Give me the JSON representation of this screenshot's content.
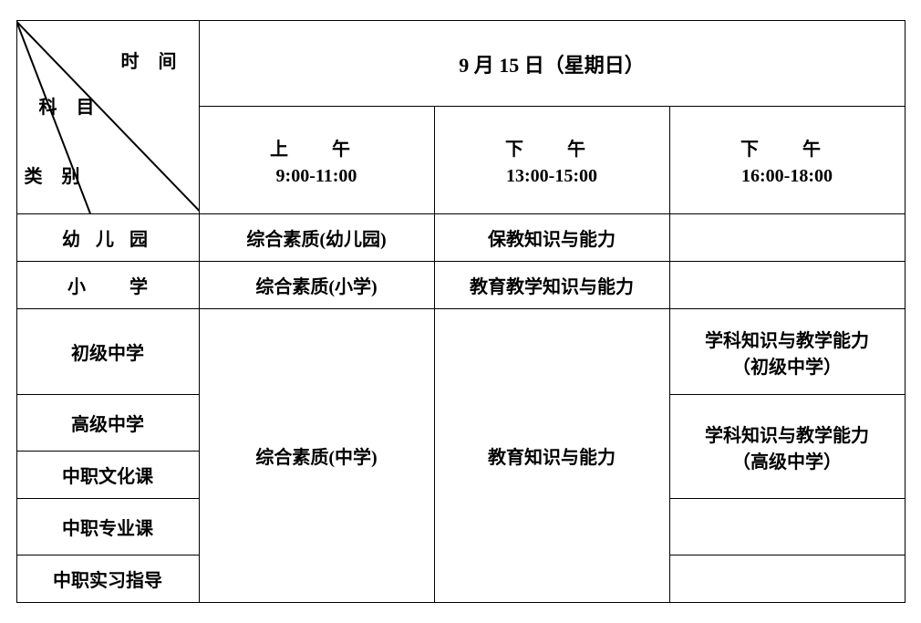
{
  "header": {
    "corner": {
      "time_label": "时 间",
      "subject_label": "科 目",
      "type_label": "类 别"
    },
    "date": "9 月 15 日（星期日）",
    "sessions": [
      {
        "period": "上　午",
        "time": "9:00-11:00"
      },
      {
        "period": "下　午",
        "time": "13:00-15:00"
      },
      {
        "period": "下　午",
        "time": "16:00-18:00"
      }
    ]
  },
  "categories": {
    "kindergarten": "幼 儿 园",
    "primary": "小学",
    "junior": "初级中学",
    "senior": "高级中学",
    "voc_culture": "中职文化课",
    "voc_major": "中职专业课",
    "voc_intern": "中职实习指导"
  },
  "cells": {
    "kinder_morning": "综合素质(幼儿园)",
    "kinder_afternoon1": "保教知识与能力",
    "primary_morning": "综合素质(小学)",
    "primary_afternoon1": "教育教学知识与能力",
    "middle_morning": "综合素质(中学)",
    "middle_afternoon1": "教育知识与能力",
    "junior_afternoon2_line1": "学科知识与教学能力",
    "junior_afternoon2_line2": "（初级中学）",
    "senior_afternoon2_line1": "学科知识与教学能力",
    "senior_afternoon2_line2": "（高级中学）"
  },
  "style": {
    "border_color": "#000000",
    "background": "#ffffff",
    "text_color": "#000000",
    "font_family": "SimSun",
    "base_fontsize": 20
  }
}
